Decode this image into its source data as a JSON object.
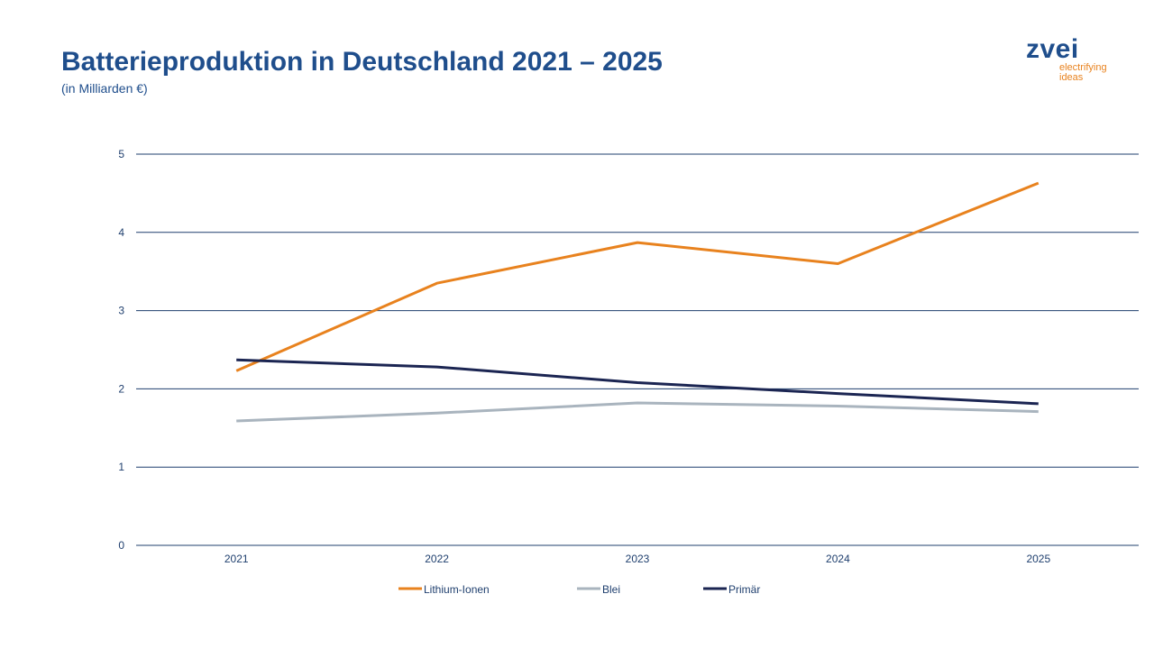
{
  "header": {
    "title": "Batterieproduktion in Deutschland 2021 – 2025",
    "subtitle": "(in Milliarden €)"
  },
  "logo": {
    "word": "zvei",
    "tagline_1": "electrifying",
    "tagline_2": "ideas"
  },
  "colors": {
    "title": "#1f4e8c",
    "grid": "#1f3f6e",
    "lithium": "#e8821e",
    "blei": "#a9b4be",
    "primaer": "#1b2552"
  },
  "chart_data": {
    "type": "line",
    "categories": [
      "2021",
      "2022",
      "2023",
      "2024",
      "2025"
    ],
    "ylim": [
      0,
      5
    ],
    "yticks": [
      "0",
      "1",
      "2",
      "3",
      "4",
      "5"
    ],
    "grid": true,
    "legend": "bottom",
    "series": [
      {
        "name": "Lithium-Ionen",
        "color": "#e8821e",
        "values": [
          2.23,
          3.35,
          3.87,
          3.6,
          4.63
        ]
      },
      {
        "name": "Blei",
        "color": "#a9b4be",
        "values": [
          1.59,
          1.69,
          1.82,
          1.78,
          1.71
        ]
      },
      {
        "name": "Primär",
        "color": "#1b2552",
        "values": [
          2.37,
          2.28,
          2.08,
          1.94,
          1.81
        ]
      }
    ]
  }
}
